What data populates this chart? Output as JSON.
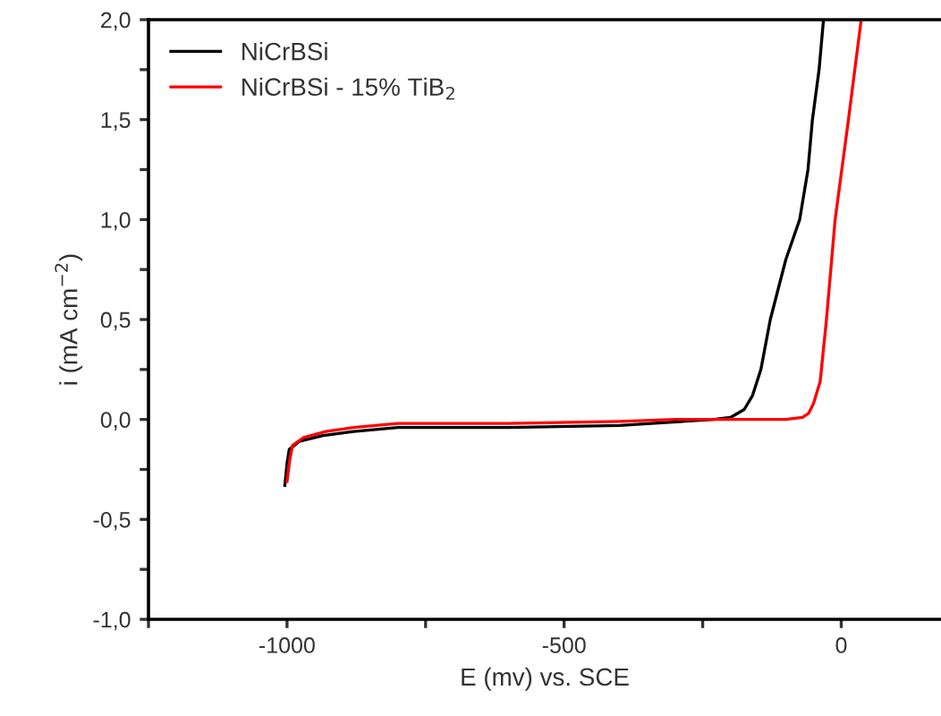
{
  "chart_data": {
    "type": "line",
    "xlabel": "E (mv) vs. SCE",
    "ylabel": "i (mA cm$^{−2}$)",
    "xlim": [
      -1250,
      180
    ],
    "ylim": [
      -1.0,
      2.0
    ],
    "xticks": [
      {
        "value": -1250,
        "label": null
      },
      -1000,
      {
        "value": -750,
        "label": null
      },
      -500,
      {
        "value": -250,
        "label": null
      },
      0
    ],
    "yticks": [
      {
        "value": -1.0,
        "label": "-1,0"
      },
      {
        "value": -0.75,
        "label": null
      },
      {
        "value": -0.5,
        "label": "-0,5"
      },
      {
        "value": -0.25,
        "label": null
      },
      {
        "value": 0.0,
        "label": "0,0"
      },
      {
        "value": 0.25,
        "label": null
      },
      {
        "value": 0.5,
        "label": "0,5"
      },
      {
        "value": 0.75,
        "label": null
      },
      {
        "value": 1.0,
        "label": "1,0"
      },
      {
        "value": 1.25,
        "label": null
      },
      {
        "value": 1.5,
        "label": "1,5"
      },
      {
        "value": 1.75,
        "label": null
      },
      {
        "value": 2.0,
        "label": "2,0"
      }
    ],
    "legend": "top left",
    "grid": false,
    "marker": "none",
    "line_style": "solid",
    "series": [
      {
        "name": "NiCrBSi",
        "color": "#000000",
        "x": [
          -1004,
          -1000,
          -996,
          -978,
          -935,
          -880,
          -800,
          -600,
          -400,
          -230,
          -200,
          -175,
          -160,
          -145,
          -128,
          -100,
          -75,
          -60,
          -52,
          -40,
          -32
        ],
        "values": [
          -0.33,
          -0.22,
          -0.15,
          -0.11,
          -0.08,
          -0.06,
          -0.04,
          -0.04,
          -0.03,
          0.0,
          0.01,
          0.05,
          0.12,
          0.25,
          0.5,
          0.8,
          1.0,
          1.25,
          1.5,
          1.75,
          2.0
        ]
      },
      {
        "name": "NiCrBSi - 15% TiB$_{2}$",
        "color": "#ff0000",
        "x": [
          -1000,
          -995,
          -990,
          -970,
          -930,
          -880,
          -800,
          -600,
          -400,
          -300,
          -100,
          -70,
          -59,
          -50,
          -38,
          -27,
          -11,
          13,
          36
        ],
        "values": [
          -0.31,
          -0.2,
          -0.13,
          -0.09,
          -0.06,
          -0.04,
          -0.02,
          -0.02,
          -0.01,
          0.0,
          0.0,
          0.01,
          0.03,
          0.08,
          0.19,
          0.49,
          1.0,
          1.5,
          2.0
        ]
      }
    ]
  }
}
